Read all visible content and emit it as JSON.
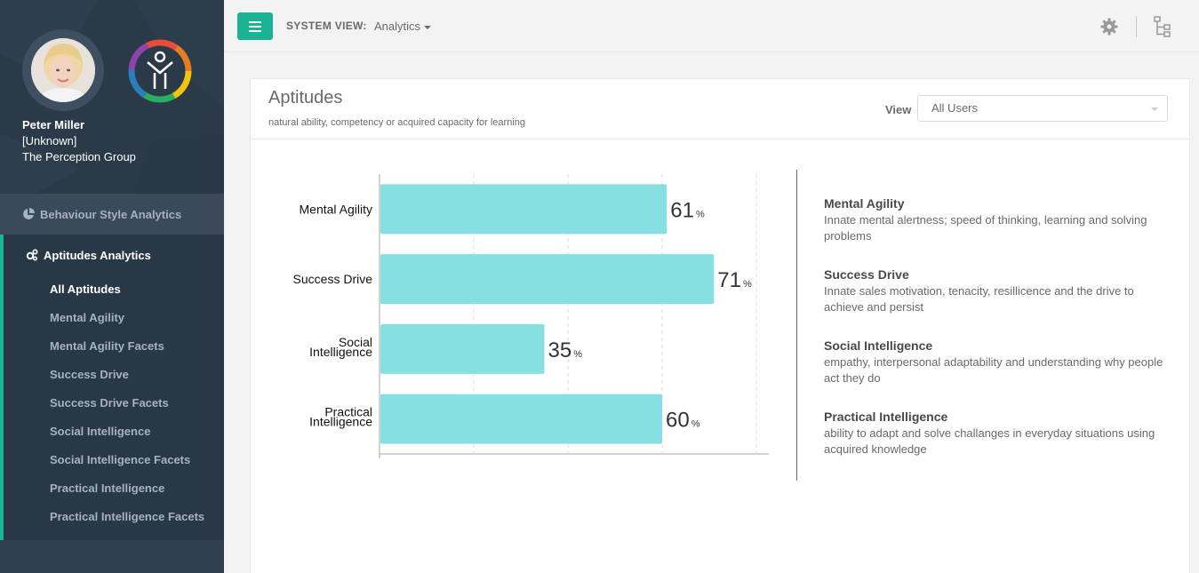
{
  "profile": {
    "name": "Peter Miller",
    "role": "[Unknown]",
    "company": "The Perception Group"
  },
  "nav": {
    "behaviour_label": "Behaviour Style Analytics",
    "aptitudes_label": "Aptitudes Analytics",
    "sub_items": [
      "All Aptitudes",
      "Mental Agility",
      "Mental Agility Facets",
      "Success Drive",
      "Success Drive Facets",
      "Social Intelligence",
      "Social Intelligence Facets",
      "Practical Intelligence",
      "Practical Intelligence Facets"
    ],
    "active_index": 0
  },
  "topbar": {
    "system_view_label": "SYSTEM VIEW:",
    "system_view_value": "Analytics"
  },
  "panel": {
    "title": "Aptitudes",
    "subtitle": "natural ability, competency or acquired capacity for learning",
    "view_label": "View",
    "view_value": "All Users"
  },
  "chart_data": {
    "type": "bar",
    "orientation": "horizontal",
    "categories": [
      [
        "Mental Agility"
      ],
      [
        "Success Drive"
      ],
      [
        "Social",
        "Intelligence"
      ],
      [
        "Practical",
        "Intelligence"
      ]
    ],
    "values": [
      61,
      71,
      35,
      60
    ],
    "value_suffix": "%",
    "xlim": [
      0,
      80
    ],
    "grid": true,
    "bar_color": "#86e0e2"
  },
  "descriptions": [
    {
      "title": "Mental Agility",
      "text": "Innate mental alertness; speed of thinking, learning and solving problems"
    },
    {
      "title": "Success Drive",
      "text": "Innate sales motivation, tenacity, resillicence and the drive to achieve and persist"
    },
    {
      "title": "Social Intelligence",
      "text": "empathy, interpersonal adaptability and understanding why people act they do"
    },
    {
      "title": "Practical Intelligence",
      "text": "ability to adapt and solve challanges in everyday situations using acquired knowledge"
    }
  ],
  "colors": {
    "accent": "#1ab394",
    "sidebar": "#2f4050"
  }
}
